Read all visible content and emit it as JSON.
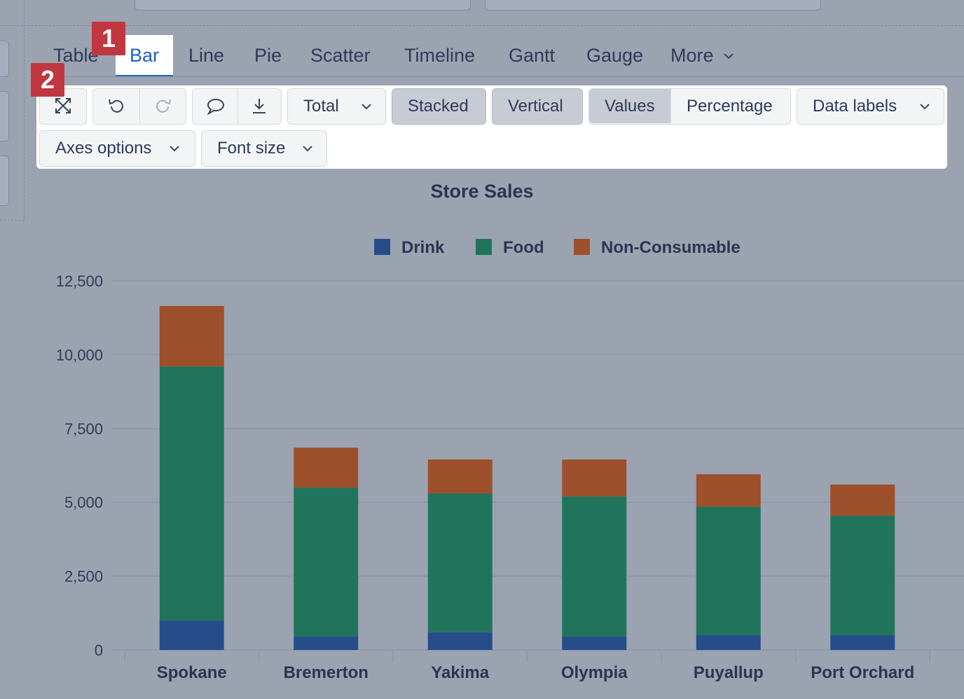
{
  "tabs": [
    {
      "label": "Table"
    },
    {
      "label": "Bar"
    },
    {
      "label": "Line"
    },
    {
      "label": "Pie"
    },
    {
      "label": "Scatter"
    },
    {
      "label": "Timeline"
    },
    {
      "label": "Gantt"
    },
    {
      "label": "Gauge"
    },
    {
      "label": "More"
    }
  ],
  "active_tab": "Bar",
  "badges": [
    "1",
    "2"
  ],
  "toolbar": {
    "total_label": "Total",
    "stacked_label": "Stacked",
    "vertical_label": "Vertical",
    "values_label": "Values",
    "percentage_label": "Percentage",
    "data_labels_label": "Data labels",
    "axes_options_label": "Axes options",
    "font_size_label": "Font size",
    "selected": [
      "Stacked",
      "Vertical",
      "Values"
    ],
    "icons": [
      "expand-icon",
      "undo-icon",
      "redo-icon",
      "comment-icon",
      "download-icon"
    ]
  },
  "chart_data": {
    "type": "bar",
    "stacked": true,
    "orientation": "vertical",
    "title": "Store Sales",
    "categories": [
      "Spokane",
      "Bremerton",
      "Yakima",
      "Olympia",
      "Puyallup",
      "Port Orchard"
    ],
    "series": [
      {
        "name": "Drink",
        "color": "#264d8a",
        "values": [
          1000,
          450,
          600,
          450,
          500,
          500
        ]
      },
      {
        "name": "Food",
        "color": "#21745c",
        "values": [
          8600,
          5050,
          4700,
          4750,
          4350,
          4050
        ]
      },
      {
        "name": "Non-Consumable",
        "color": "#9d502b",
        "values": [
          2050,
          1350,
          1150,
          1250,
          1100,
          1050
        ]
      }
    ],
    "yticks": [
      "0",
      "2,500",
      "5,000",
      "7,500",
      "10,000",
      "12,500"
    ],
    "ylim": [
      0,
      12500
    ],
    "grid": true,
    "legend": "top-center"
  }
}
